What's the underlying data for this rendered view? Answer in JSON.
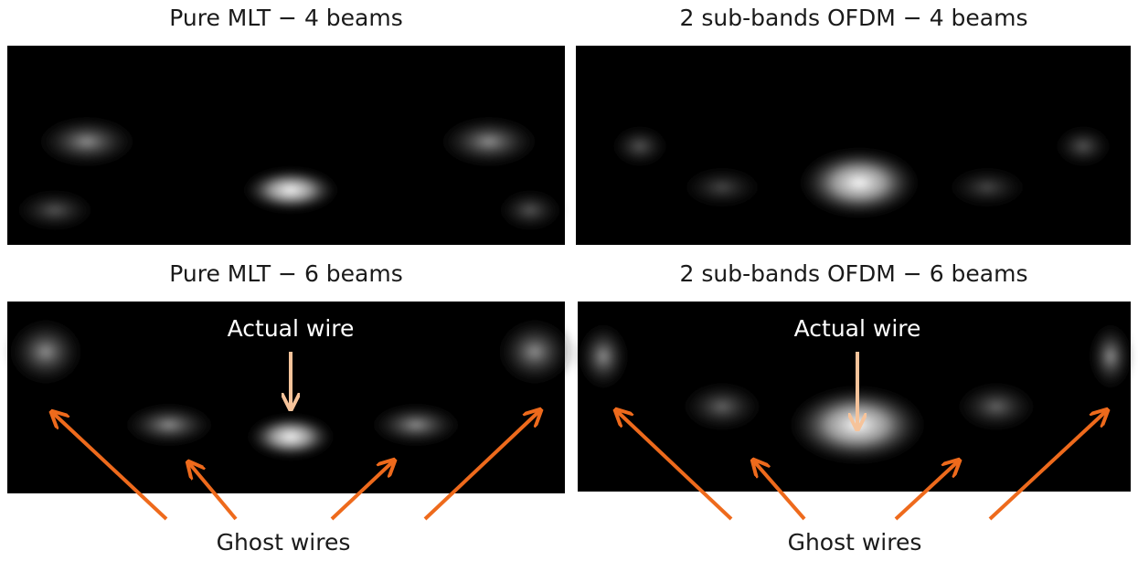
{
  "panels": [
    {
      "title": "Pure MLT − 4 beams"
    },
    {
      "title": "2 sub-bands OFDM − 4 beams"
    },
    {
      "title": "Pure MLT − 6 beams",
      "annotation": "Actual wire"
    },
    {
      "title": "2 sub-bands OFDM − 6 beams",
      "annotation": "Actual wire"
    }
  ],
  "captions": [
    "Ghost wires",
    "Ghost wires"
  ]
}
